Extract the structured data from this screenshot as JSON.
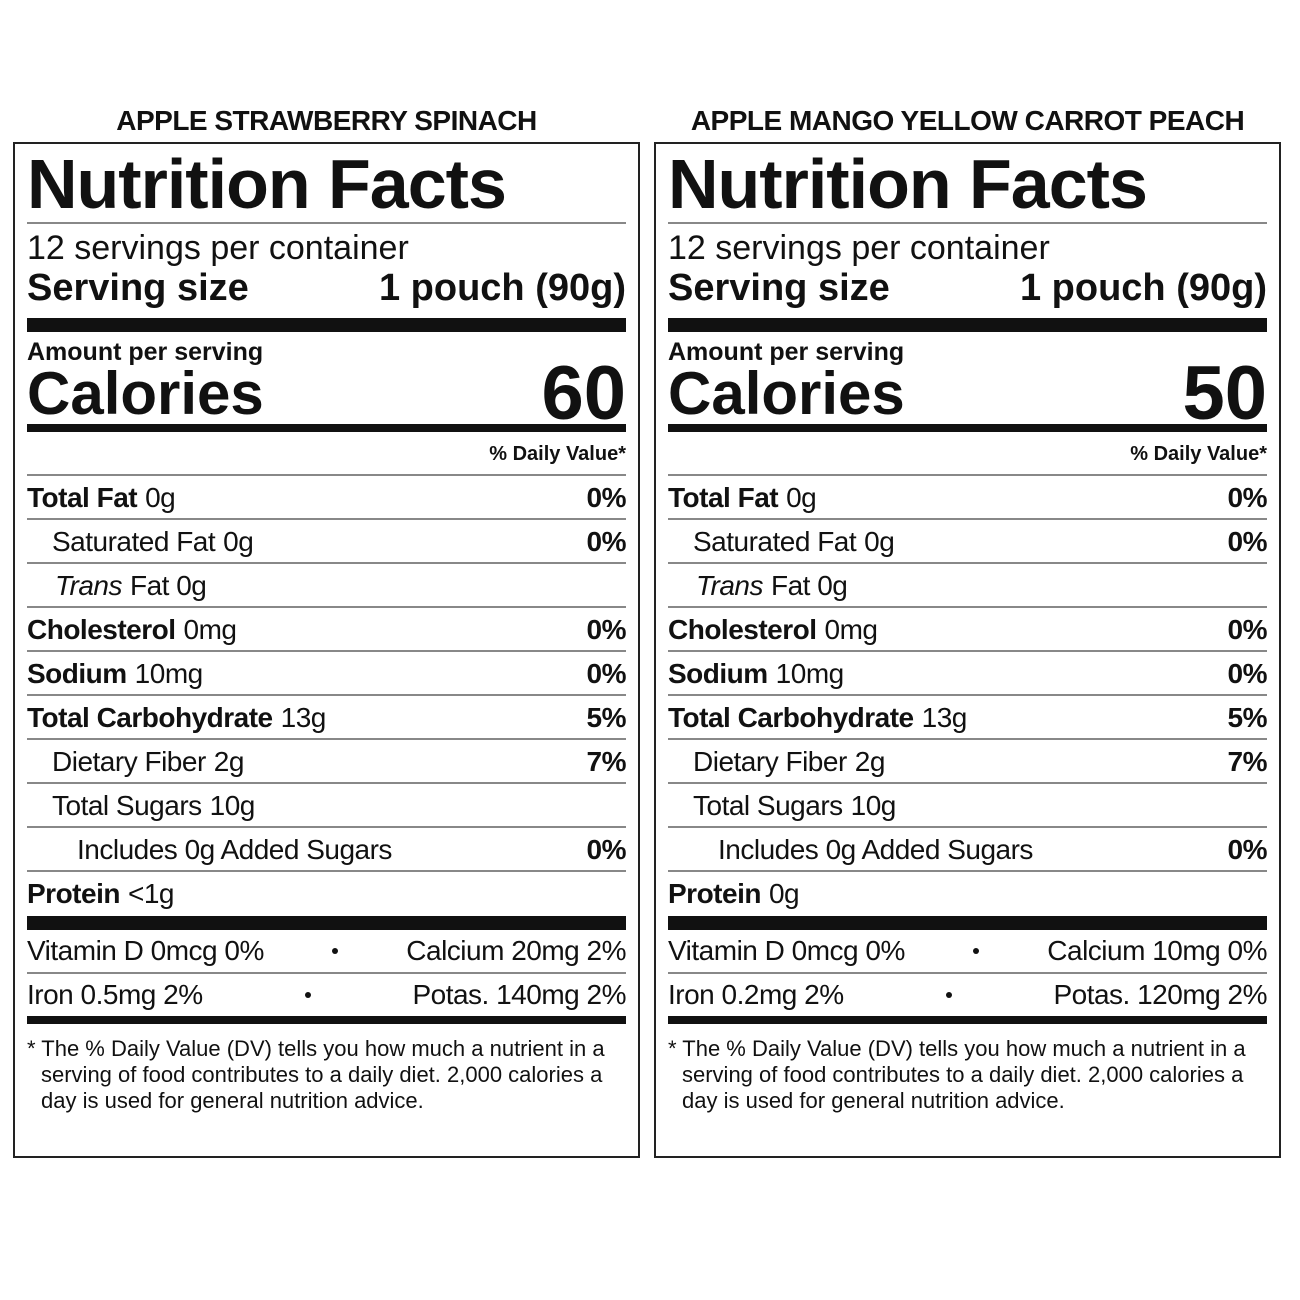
{
  "labels": [
    {
      "product": "APPLE STRAWBERRY SPINACH",
      "title": "Nutrition Facts",
      "servings": "12 servings per container",
      "serving_size_label": "Serving size",
      "serving_size_value": "1 pouch (90g)",
      "amount_per_serving": "Amount per serving",
      "calories_label": "Calories",
      "calories_value": "60",
      "dv_header": "% Daily Value*",
      "rows": [
        {
          "name": "Total Fat",
          "amount": "0g",
          "dv": "0%",
          "style": "bold",
          "indent": 0
        },
        {
          "name": "Saturated Fat",
          "amount": "0g",
          "dv": "0%",
          "style": "plain",
          "indent": 1
        },
        {
          "name": "Trans",
          "amount": "Fat 0g",
          "style": "italic",
          "indent": 1
        },
        {
          "name": "Cholesterol",
          "amount": "0mg",
          "dv": "0%",
          "style": "bold",
          "indent": 0
        },
        {
          "name": "Sodium",
          "amount": "10mg",
          "dv": "0%",
          "style": "bold",
          "indent": 0
        },
        {
          "name": "Total Carbohydrate",
          "amount": "13g",
          "dv": "5%",
          "style": "bold",
          "indent": 0
        },
        {
          "name": "Dietary Fiber",
          "amount": "2g",
          "dv": "7%",
          "style": "plain",
          "indent": 1
        },
        {
          "name": "Total Sugars",
          "amount": "10g",
          "style": "plain",
          "indent": 1
        },
        {
          "name": "Includes 0g Added Sugars",
          "dv": "0%",
          "style": "plain",
          "indent": 2
        },
        {
          "name": "Protein",
          "amount": "<1g",
          "style": "bold",
          "indent": 0
        }
      ],
      "minerals": [
        [
          "Vitamin D 0mcg 0%",
          "Calcium 20mg 2%"
        ],
        [
          "Iron 0.5mg 2%",
          "Potas. 140mg 2%"
        ]
      ],
      "footnote": "* The % Daily Value (DV) tells you how much a nutrient in a serving of food contributes to a daily diet. 2,000 calories a day is used for general nutrition advice."
    },
    {
      "product": "APPLE MANGO YELLOW CARROT PEACH",
      "title": "Nutrition Facts",
      "servings": "12 servings per container",
      "serving_size_label": "Serving size",
      "serving_size_value": "1 pouch (90g)",
      "amount_per_serving": "Amount per serving",
      "calories_label": "Calories",
      "calories_value": "50",
      "dv_header": "% Daily Value*",
      "rows": [
        {
          "name": "Total Fat",
          "amount": "0g",
          "dv": "0%",
          "style": "bold",
          "indent": 0
        },
        {
          "name": "Saturated Fat",
          "amount": "0g",
          "dv": "0%",
          "style": "plain",
          "indent": 1
        },
        {
          "name": "Trans",
          "amount": "Fat 0g",
          "style": "italic",
          "indent": 1
        },
        {
          "name": "Cholesterol",
          "amount": "0mg",
          "dv": "0%",
          "style": "bold",
          "indent": 0
        },
        {
          "name": "Sodium",
          "amount": "10mg",
          "dv": "0%",
          "style": "bold",
          "indent": 0
        },
        {
          "name": "Total Carbohydrate",
          "amount": "13g",
          "dv": "5%",
          "style": "bold",
          "indent": 0
        },
        {
          "name": "Dietary Fiber",
          "amount": "2g",
          "dv": "7%",
          "style": "plain",
          "indent": 1
        },
        {
          "name": "Total Sugars",
          "amount": "10g",
          "style": "plain",
          "indent": 1
        },
        {
          "name": "Includes 0g Added Sugars",
          "dv": "0%",
          "style": "plain",
          "indent": 2
        },
        {
          "name": "Protein",
          "amount": "0g",
          "style": "bold",
          "indent": 0
        }
      ],
      "minerals": [
        [
          "Vitamin D 0mcg 0%",
          "Calcium 10mg 0%"
        ],
        [
          "Iron 0.2mg 2%",
          "Potas. 120mg 2%"
        ]
      ],
      "footnote": "* The % Daily Value (DV) tells you how much a nutrient in a serving of food contributes to a daily diet. 2,000 calories a day is used for general nutrition advice."
    }
  ]
}
